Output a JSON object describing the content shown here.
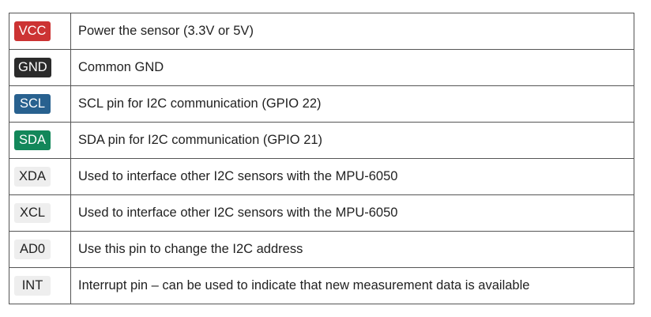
{
  "pins": [
    {
      "name": "VCC",
      "description": "Power the sensor (3.3V or 5V)",
      "badge_bg": "#cc3333",
      "badge_fg": "#ffffff"
    },
    {
      "name": "GND",
      "description": "Common GND",
      "badge_bg": "#2b2b2b",
      "badge_fg": "#ffffff"
    },
    {
      "name": "SCL",
      "description": "SCL pin for I2C communication (GPIO 22)",
      "badge_bg": "#28618f",
      "badge_fg": "#ffffff"
    },
    {
      "name": "SDA",
      "description": "SDA pin for I2C communication (GPIO 21)",
      "badge_bg": "#13875a",
      "badge_fg": "#ffffff"
    },
    {
      "name": "XDA",
      "description": "Used to interface other I2C sensors with the MPU-6050",
      "badge_bg": "#eeeeee",
      "badge_fg": "#222222"
    },
    {
      "name": "XCL",
      "description": "Used to interface other I2C sensors with the MPU-6050",
      "badge_bg": "#eeeeee",
      "badge_fg": "#222222"
    },
    {
      "name": "AD0",
      "description": "Use this pin to change the I2C address",
      "badge_bg": "#eeeeee",
      "badge_fg": "#222222"
    },
    {
      "name": "INT",
      "description": "Interrupt pin – can be used to indicate that new measurement data is available",
      "badge_bg": "#eeeeee",
      "badge_fg": "#222222"
    }
  ]
}
